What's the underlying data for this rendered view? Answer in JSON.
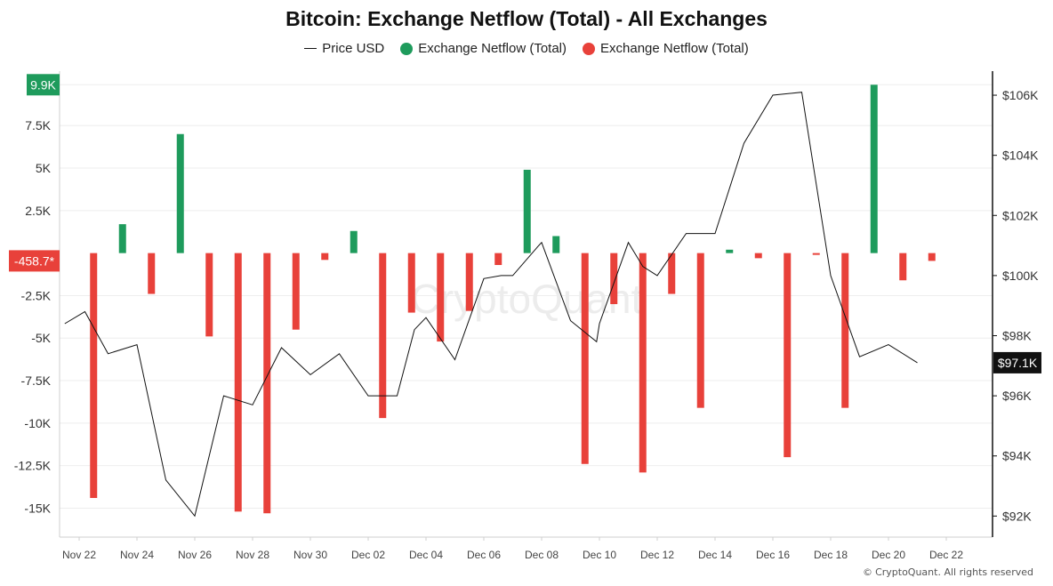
{
  "chart_data": {
    "type": "bar+line",
    "title": "Bitcoin: Exchange Netflow (Total) - All Exchanges",
    "legend": [
      {
        "label": "Price USD",
        "kind": "line",
        "color": "#111111"
      },
      {
        "label": "Exchange Netflow (Total)",
        "kind": "dot",
        "color": "#1e9b5c"
      },
      {
        "label": "Exchange Netflow (Total)",
        "kind": "dot",
        "color": "#e8413a"
      }
    ],
    "x_tick_labels": [
      "Nov 22",
      "Nov 24",
      "Nov 26",
      "Nov 28",
      "Nov 30",
      "Dec 02",
      "Dec 04",
      "Dec 06",
      "Dec 08",
      "Dec 10",
      "Dec 12",
      "Dec 14",
      "Dec 16",
      "Dec 18",
      "Dec 20",
      "Dec 22"
    ],
    "y_left": {
      "ticks": [
        7500,
        5000,
        2500,
        -2500,
        -5000,
        -7500,
        -10000,
        -12500,
        -15000
      ],
      "tick_labels": [
        "7.5K",
        "5K",
        "2.5K",
        "-2.5K",
        "-5K",
        "-7.5K",
        "-10K",
        "-12.5K",
        "-15K"
      ],
      "ylim": [
        -16700,
        10700
      ]
    },
    "y_right": {
      "ticks": [
        92000,
        94000,
        96000,
        98000,
        100000,
        102000,
        104000,
        106000
      ],
      "tick_labels": [
        "$92K",
        "$94K",
        "$96K",
        "$98K",
        "$100K",
        "$102K",
        "$104K",
        "$106K"
      ],
      "ylim": [
        91300,
        106800
      ]
    },
    "markers": {
      "left_top": {
        "value": 9900,
        "label": "9.9K",
        "color": "#1e9b5c"
      },
      "left_last": {
        "value": -458.7,
        "label": "-458.7*",
        "color": "#e8413a"
      },
      "right_last": {
        "value": 97100,
        "label": "$97.1K",
        "color": "#111111"
      }
    },
    "netflow_series": {
      "name": "Exchange Netflow (Total)",
      "day_offsets": [
        0.5,
        1.5,
        2.5,
        3.5,
        4.5,
        5.5,
        6.5,
        7.5,
        8.5,
        9.5,
        10.5,
        11.5,
        12.5,
        13.5,
        14.5,
        15.5,
        16.5,
        17.5,
        18.5,
        19.5,
        20.5,
        21.5,
        22.5,
        23.5,
        24.5,
        25.5,
        26.5,
        27.5,
        28.5,
        29.5
      ],
      "values": [
        -14400,
        1700,
        -2400,
        7000,
        -4900,
        -15200,
        -15300,
        -4500,
        -400,
        1300,
        -9700,
        -3500,
        -5200,
        -3400,
        -700,
        4900,
        1000,
        -12400,
        -3000,
        -12900,
        -2400,
        -9100,
        200,
        -300,
        -12000,
        -100,
        -9100,
        9900,
        -1600,
        -458.7
      ],
      "positive_color": "#1e9b5c",
      "negative_color": "#e8413a"
    },
    "price_series": {
      "name": "Price USD",
      "day_offsets": [
        -0.5,
        0.2,
        1,
        2,
        3,
        4,
        5,
        6,
        7,
        8,
        9,
        10,
        11,
        11.6,
        12,
        13,
        14,
        14.6,
        15,
        15.9,
        16,
        17,
        17.9,
        18,
        19,
        19.5,
        20,
        21,
        22,
        23,
        24,
        25,
        26,
        27,
        28,
        29,
        30
      ],
      "values": [
        98400,
        98800,
        97400,
        97700,
        93200,
        92000,
        96000,
        95700,
        97600,
        96700,
        97400,
        96000,
        96000,
        98200,
        98600,
        97200,
        99900,
        100000,
        100000,
        101000,
        101100,
        98500,
        97800,
        98400,
        101100,
        100300,
        100000,
        101400,
        101400,
        104400,
        106000,
        106100,
        100000,
        97300,
        97700,
        97100,
        null
      ]
    },
    "watermark": "CryptoQuant",
    "copyright": "CryptoQuant. All rights reserved",
    "copyright_symbol": "©"
  }
}
